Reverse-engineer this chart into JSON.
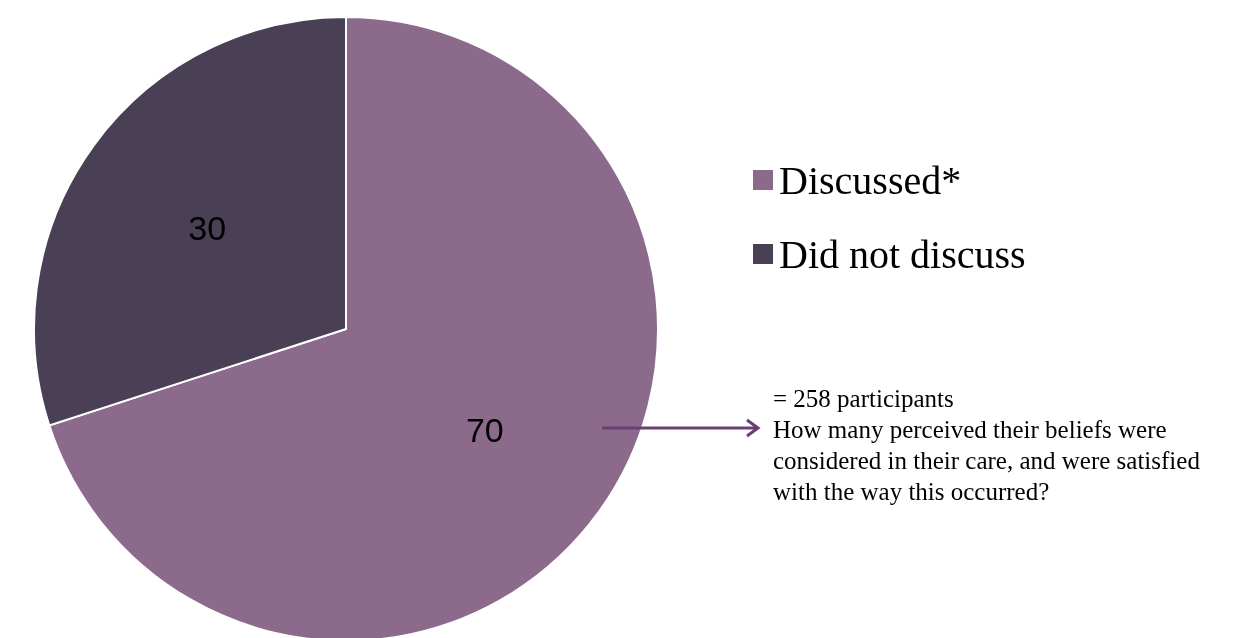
{
  "chart_data": {
    "type": "pie",
    "categories": [
      "Discussed*",
      "Did not discuss"
    ],
    "values": [
      70,
      30
    ],
    "colors": [
      "#8c6a8c",
      "#4a4056"
    ],
    "data_labels": true,
    "legend": "right",
    "annotations": [
      "= 258 participants",
      "How many perceived their beliefs were considered in their care, and were satisfied with the way this occurred?"
    ]
  }
}
